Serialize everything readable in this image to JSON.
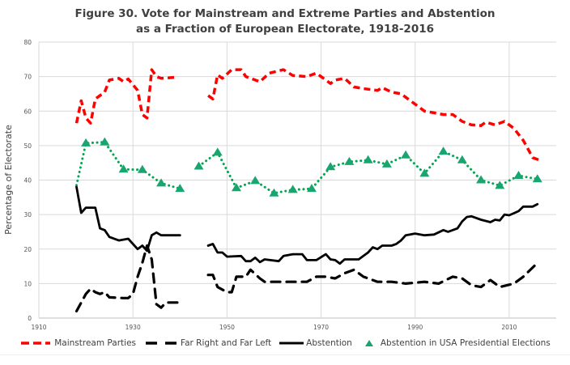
{
  "chart_data": {
    "type": "line",
    "title": "Figure 30. Vote for Mainstream and Extreme Parties and Abstention",
    "subtitle": "as a Fraction of European Electorate, 1918-2016",
    "xlabel": "",
    "ylabel": "Percentage of Electorate",
    "xlim": [
      1910,
      2020
    ],
    "ylim": [
      0,
      80
    ],
    "x_ticks": [
      "1910",
      "1930",
      "1950",
      "1970",
      "1990",
      "2010"
    ],
    "y_ticks": [
      "0",
      "10",
      "20",
      "30",
      "40",
      "50",
      "60",
      "70",
      "80"
    ],
    "grid": true,
    "legend_position": "bottom",
    "series": [
      {
        "name": "Mainstream Parties",
        "color": "#ff0000",
        "style": "dashed",
        "segments": [
          [
            [
              1918,
              56.5
            ],
            [
              1919,
              63
            ],
            [
              1920,
              58
            ],
            [
              1921,
              56.5
            ],
            [
              1922,
              63.5
            ],
            [
              1924,
              65.5
            ],
            [
              1925,
              69
            ],
            [
              1927,
              69.5
            ],
            [
              1928,
              68.5
            ],
            [
              1929,
              69.3
            ],
            [
              1931,
              66
            ],
            [
              1932,
              59
            ],
            [
              1933,
              58
            ],
            [
              1934,
              72
            ],
            [
              1935,
              70
            ],
            [
              1936,
              69.5
            ],
            [
              1939,
              69.8
            ]
          ],
          [
            [
              1946,
              64.5
            ],
            [
              1947,
              63.5
            ],
            [
              1948,
              70.5
            ],
            [
              1949,
              69.5
            ],
            [
              1951,
              72
            ],
            [
              1953,
              72
            ],
            [
              1954,
              70
            ],
            [
              1957,
              68.5
            ],
            [
              1959,
              71
            ],
            [
              1962,
              72
            ],
            [
              1964,
              70.3
            ],
            [
              1967,
              70
            ],
            [
              1969,
              71
            ],
            [
              1970,
              70
            ],
            [
              1972,
              68
            ],
            [
              1973,
              69
            ],
            [
              1975,
              69.5
            ],
            [
              1977,
              67
            ],
            [
              1979,
              66.5
            ],
            [
              1982,
              66
            ],
            [
              1983,
              66.8
            ],
            [
              1985,
              65.5
            ],
            [
              1987,
              65
            ],
            [
              1990,
              62
            ],
            [
              1992,
              60
            ],
            [
              1994,
              59.5
            ],
            [
              1996,
              59
            ],
            [
              1998,
              59
            ],
            [
              2000,
              57
            ],
            [
              2002,
              56
            ],
            [
              2004,
              55.8
            ],
            [
              2005,
              56.8
            ],
            [
              2007,
              56
            ],
            [
              2009,
              57
            ],
            [
              2011,
              55
            ],
            [
              2013,
              51.5
            ],
            [
              2015,
              46.5
            ],
            [
              2017,
              45.5
            ]
          ]
        ]
      },
      {
        "name": "Far Right and Far Left",
        "color": "#000000",
        "style": "long-dash",
        "segments": [
          [
            [
              1918,
              2
            ],
            [
              1920,
              7
            ],
            [
              1921,
              8.5
            ],
            [
              1922,
              7.5
            ],
            [
              1923,
              7
            ],
            [
              1924,
              7.5
            ],
            [
              1925,
              6
            ],
            [
              1928,
              5.8
            ],
            [
              1929,
              5.8
            ],
            [
              1930,
              7
            ],
            [
              1931,
              12
            ],
            [
              1932,
              16
            ],
            [
              1933,
              21
            ],
            [
              1934,
              17
            ],
            [
              1935,
              4
            ],
            [
              1936,
              3
            ],
            [
              1937,
              4.5
            ],
            [
              1940,
              4.5
            ]
          ],
          [
            [
              1946,
              12.5
            ],
            [
              1947,
              12.5
            ],
            [
              1948,
              9
            ],
            [
              1950,
              7.5
            ],
            [
              1951,
              7.5
            ],
            [
              1952,
              12
            ],
            [
              1954,
              12
            ],
            [
              1955,
              14
            ],
            [
              1957,
              11.5
            ],
            [
              1958,
              10.5
            ],
            [
              1962,
              10.5
            ],
            [
              1965,
              10.5
            ],
            [
              1967,
              10.5
            ],
            [
              1969,
              12
            ],
            [
              1971,
              12
            ],
            [
              1973,
              11.5
            ],
            [
              1975,
              13
            ],
            [
              1977,
              14
            ],
            [
              1979,
              12
            ],
            [
              1982,
              10.5
            ],
            [
              1985,
              10.5
            ],
            [
              1988,
              10
            ],
            [
              1992,
              10.5
            ],
            [
              1995,
              10
            ],
            [
              1998,
              12
            ],
            [
              2000,
              11.5
            ],
            [
              2002,
              9.5
            ],
            [
              2004,
              9
            ],
            [
              2006,
              11
            ],
            [
              2008,
              9
            ],
            [
              2011,
              10
            ],
            [
              2013,
              12
            ],
            [
              2016,
              16
            ]
          ]
        ]
      },
      {
        "name": "Abstention",
        "color": "#000000",
        "style": "solid",
        "segments": [
          [
            [
              1918,
              38
            ],
            [
              1919,
              30.5
            ],
            [
              1920,
              32
            ],
            [
              1922,
              32
            ],
            [
              1923,
              26
            ],
            [
              1924,
              25.5
            ],
            [
              1925,
              23.5
            ],
            [
              1927,
              22.5
            ],
            [
              1929,
              23
            ],
            [
              1931,
              20
            ],
            [
              1932,
              21
            ],
            [
              1933,
              19.5
            ],
            [
              1934,
              24
            ],
            [
              1935,
              24.8
            ],
            [
              1936,
              24
            ],
            [
              1940,
              24
            ]
          ],
          [
            [
              1946,
              21
            ],
            [
              1947,
              21.5
            ],
            [
              1948,
              19
            ],
            [
              1949,
              19
            ],
            [
              1950,
              17.8
            ],
            [
              1953,
              18
            ],
            [
              1954,
              16.5
            ],
            [
              1955,
              16.5
            ],
            [
              1956,
              17.5
            ],
            [
              1957,
              16.2
            ],
            [
              1958,
              17
            ],
            [
              1961,
              16.5
            ],
            [
              1962,
              18
            ],
            [
              1964,
              18.5
            ],
            [
              1966,
              18.5
            ],
            [
              1967,
              16.8
            ],
            [
              1969,
              16.8
            ],
            [
              1971,
              18.5
            ],
            [
              1972,
              17
            ],
            [
              1973,
              16.8
            ],
            [
              1974,
              15.8
            ],
            [
              1975,
              17
            ],
            [
              1978,
              17
            ],
            [
              1979,
              18
            ],
            [
              1980,
              19
            ],
            [
              1981,
              20.5
            ],
            [
              1982,
              20
            ],
            [
              1983,
              21
            ],
            [
              1985,
              21
            ],
            [
              1986,
              21.5
            ],
            [
              1987,
              22.5
            ],
            [
              1988,
              24
            ],
            [
              1990,
              24.5
            ],
            [
              1992,
              24
            ],
            [
              1994,
              24.2
            ],
            [
              1996,
              25.5
            ],
            [
              1997,
              25
            ],
            [
              1999,
              26
            ],
            [
              2000,
              28
            ],
            [
              2001,
              29.3
            ],
            [
              2002,
              29.5
            ],
            [
              2004,
              28.5
            ],
            [
              2006,
              27.8
            ],
            [
              2007,
              28.5
            ],
            [
              2008,
              28.3
            ],
            [
              2009,
              30
            ],
            [
              2010,
              29.8
            ],
            [
              2012,
              31
            ],
            [
              2013,
              32.3
            ],
            [
              2015,
              32.3
            ],
            [
              2016,
              33
            ]
          ]
        ]
      },
      {
        "name": "Abstention in USA Presidential Elections",
        "color": "#00a651",
        "marker_color": "#19a56f",
        "style": "dotted",
        "markers": true,
        "segments": [
          [
            [
              1918,
              38.5
            ],
            [
              1920,
              50.7
            ],
            [
              1924,
              51
            ],
            [
              1928,
              43.1
            ],
            [
              1932,
              43
            ],
            [
              1936,
              39.1
            ],
            [
              1940,
              37.5
            ]
          ],
          [
            [
              1944,
              44
            ],
            [
              1948,
              48
            ],
            [
              1952,
              37.7
            ],
            [
              1956,
              39.8
            ],
            [
              1960,
              36.2
            ],
            [
              1964,
              37.2
            ],
            [
              1968,
              37.5
            ],
            [
              1972,
              43.8
            ],
            [
              1976,
              45.3
            ],
            [
              1980,
              45.8
            ],
            [
              1984,
              44.6
            ],
            [
              1988,
              47.2
            ],
            [
              1992,
              41.9
            ],
            [
              1996,
              48.3
            ],
            [
              2000,
              45.8
            ],
            [
              2004,
              40
            ],
            [
              2008,
              38.4
            ],
            [
              2012,
              41.3
            ],
            [
              2016,
              40.3
            ]
          ]
        ]
      }
    ]
  }
}
